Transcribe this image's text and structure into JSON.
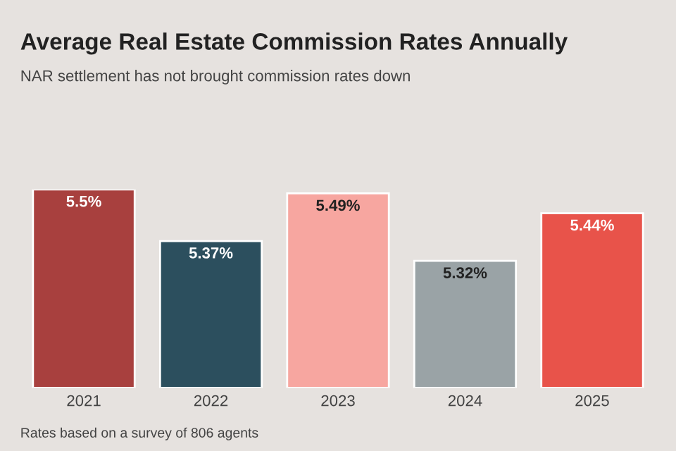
{
  "chart_data": {
    "type": "bar",
    "title": "Average Real Estate Commission Rates Annually",
    "subtitle": "NAR settlement has not brought commission rates down",
    "categories": [
      "2021",
      "2022",
      "2023",
      "2024",
      "2025"
    ],
    "values": [
      5.5,
      5.37,
      5.49,
      5.32,
      5.44
    ],
    "colors": [
      "#a8403e",
      "#2c4f5e",
      "#f7a6a0",
      "#9aa3a6",
      "#e8534a"
    ],
    "value_labels": [
      "5.5%",
      "5.37%",
      "5.49%",
      "5.32%",
      "5.44%"
    ],
    "ylim": [
      5.0,
      5.5
    ],
    "tick_labels": "x",
    "grid": false,
    "legend": false,
    "annotations": [
      "Rates based on a survey of 806 agents"
    ]
  }
}
